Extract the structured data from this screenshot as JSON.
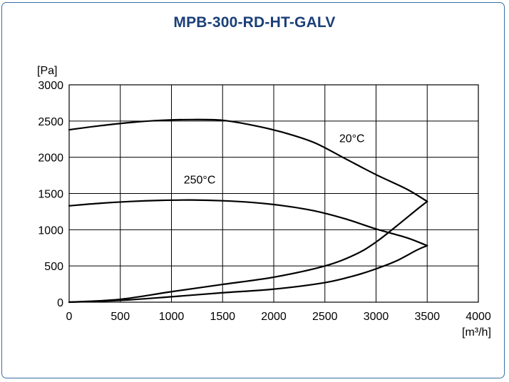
{
  "chart_data": {
    "type": "line",
    "title": "MPB-300-RD-HT-GALV",
    "y_unit": "[Pa]",
    "x_unit": "[m³/h]",
    "xlim": [
      0,
      4000
    ],
    "ylim": [
      0,
      3000
    ],
    "x_ticks": [
      0,
      500,
      1000,
      1500,
      2000,
      2500,
      3000,
      3500,
      4000
    ],
    "y_ticks": [
      0,
      500,
      1000,
      1500,
      2000,
      2500,
      3000
    ],
    "grid": true,
    "line_color": "#000000",
    "series": [
      {
        "name": "20°C",
        "x": [
          0,
          300,
          600,
          900,
          1200,
          1500,
          1800,
          2100,
          2400,
          2700,
          3000,
          3300,
          3500
        ],
        "y": [
          2380,
          2435,
          2480,
          2510,
          2520,
          2510,
          2440,
          2340,
          2200,
          1980,
          1760,
          1560,
          1390
        ]
      },
      {
        "name": "250°C",
        "x": [
          0,
          300,
          600,
          900,
          1200,
          1500,
          1800,
          2100,
          2400,
          2700,
          3000,
          3300,
          3500
        ],
        "y": [
          1330,
          1365,
          1390,
          1405,
          1410,
          1400,
          1375,
          1330,
          1260,
          1150,
          1010,
          890,
          780
        ]
      },
      {
        "name": "",
        "x": [
          0,
          500,
          1000,
          1500,
          2000,
          2500,
          2800,
          3000,
          3200,
          3400,
          3500
        ],
        "y": [
          0,
          40,
          145,
          245,
          345,
          500,
          660,
          830,
          1050,
          1280,
          1390
        ]
      },
      {
        "name": "",
        "x": [
          0,
          500,
          1000,
          1500,
          2000,
          2500,
          2800,
          3000,
          3200,
          3400,
          3500
        ],
        "y": [
          0,
          25,
          75,
          130,
          180,
          270,
          370,
          460,
          570,
          720,
          780
        ]
      }
    ],
    "annotations": [
      {
        "text": "20°C",
        "x": 2640,
        "y": 2210
      },
      {
        "text": "250°C",
        "x": 1120,
        "y": 1640
      }
    ]
  }
}
